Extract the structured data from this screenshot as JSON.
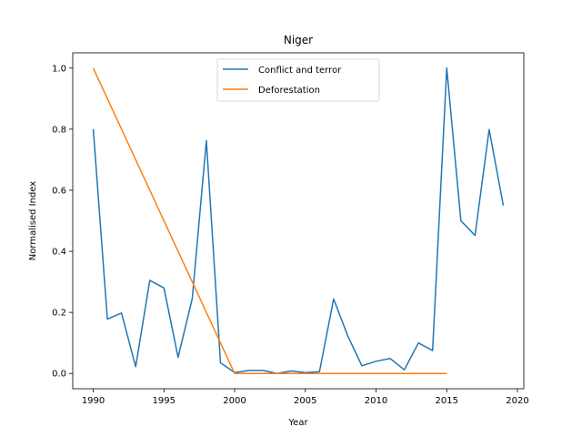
{
  "chart_data": {
    "type": "line",
    "title": "Niger",
    "xlabel": "Year",
    "ylabel": "Normalised Index",
    "xlim": [
      1988.55,
      2020.45
    ],
    "ylim": [
      -0.05,
      1.05
    ],
    "xticks": [
      1990,
      1995,
      2000,
      2005,
      2010,
      2015,
      2020
    ],
    "yticks": [
      0.0,
      0.2,
      0.4,
      0.6,
      0.8,
      1.0
    ],
    "ytick_labels": [
      "0.0",
      "0.2",
      "0.4",
      "0.6",
      "0.8",
      "1.0"
    ],
    "grid": false,
    "legend_position": "top-center",
    "series": [
      {
        "name": "Conflict and terror",
        "color": "#1f77b4",
        "x": [
          1990,
          1991,
          1992,
          1993,
          1994,
          1995,
          1996,
          1997,
          1998,
          1999,
          2000,
          2001,
          2002,
          2003,
          2004,
          2005,
          2006,
          2007,
          2008,
          2009,
          2010,
          2011,
          2012,
          2013,
          2014,
          2015,
          2016,
          2017,
          2018,
          2019
        ],
        "y": [
          0.8,
          0.178,
          0.198,
          0.022,
          0.305,
          0.28,
          0.053,
          0.245,
          0.762,
          0.035,
          0.003,
          0.01,
          0.01,
          0.0,
          0.008,
          0.003,
          0.006,
          0.244,
          0.123,
          0.025,
          0.04,
          0.049,
          0.012,
          0.1,
          0.075,
          1.0,
          0.5,
          0.452,
          0.799,
          0.55
        ]
      },
      {
        "name": "Deforestation",
        "color": "#ff7f0e",
        "x": [
          1990,
          2000,
          2001,
          2002,
          2003,
          2004,
          2005,
          2006,
          2007,
          2008,
          2009,
          2010,
          2011,
          2012,
          2013,
          2014,
          2015
        ],
        "y": [
          1.0,
          0.0,
          0.0,
          0.0,
          0.0,
          0.0,
          0.0,
          0.0,
          0.0,
          0.0,
          0.0,
          0.0,
          0.0,
          0.0,
          0.0,
          0.0,
          0.0
        ]
      }
    ]
  }
}
